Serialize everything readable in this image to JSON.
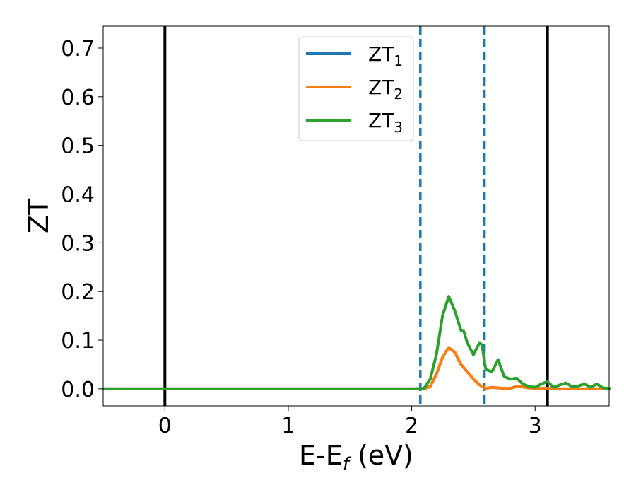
{
  "chart_data": {
    "type": "line",
    "xlabel": "E-E",
    "xlabel_sub": "f",
    "xlabel_unit": " (eV)",
    "ylabel": "ZT",
    "xlim": [
      -0.5,
      3.6
    ],
    "ylim": [
      -0.035,
      0.745
    ],
    "xticks": [
      0,
      1,
      2,
      3
    ],
    "yticks": [
      0.0,
      0.1,
      0.2,
      0.3,
      0.4,
      0.5,
      0.6,
      0.7
    ],
    "xtick_labels": [
      "0",
      "1",
      "2",
      "3"
    ],
    "ytick_labels": [
      "0.0",
      "0.1",
      "0.2",
      "0.3",
      "0.4",
      "0.5",
      "0.6",
      "0.7"
    ],
    "grid": false,
    "legend_position": "top-center",
    "vertical_lines": [
      {
        "x": 0.0,
        "style": "solid",
        "color": "#000000"
      },
      {
        "x": 3.1,
        "style": "solid",
        "color": "#000000"
      },
      {
        "x": 2.07,
        "style": "dashed",
        "color": "#1f77b4"
      },
      {
        "x": 2.59,
        "style": "dashed",
        "color": "#1f77b4"
      }
    ],
    "series": [
      {
        "name": "ZT",
        "name_sub": "1",
        "color": "#1f77b4",
        "x": [
          -0.5,
          2.0,
          2.1,
          2.15,
          2.2,
          2.25,
          2.3,
          2.35,
          2.4,
          2.45,
          2.5,
          2.55,
          2.6,
          2.65,
          2.7,
          2.75,
          2.8,
          2.85,
          2.9,
          2.95,
          3.0,
          3.1,
          3.2,
          3.3,
          3.4,
          3.5,
          3.6
        ],
        "y": [
          0,
          0,
          0,
          0.005,
          0.03,
          0.065,
          0.085,
          0.075,
          0.05,
          0.035,
          0.02,
          0.008,
          0.001,
          0.003,
          0.002,
          0.001,
          0.001,
          0.005,
          0.004,
          0.002,
          0.001,
          0.001,
          0,
          0,
          0,
          0,
          0
        ]
      },
      {
        "name": "ZT",
        "name_sub": "2",
        "color": "#ff7f0e",
        "x": [
          -0.5,
          2.0,
          2.1,
          2.15,
          2.2,
          2.25,
          2.3,
          2.35,
          2.4,
          2.45,
          2.5,
          2.55,
          2.6,
          2.65,
          2.7,
          2.75,
          2.8,
          2.85,
          2.9,
          2.95,
          3.0,
          3.1,
          3.2,
          3.3,
          3.4,
          3.5,
          3.6
        ],
        "y": [
          0,
          0,
          0,
          0.005,
          0.03,
          0.065,
          0.085,
          0.075,
          0.05,
          0.035,
          0.02,
          0.008,
          0.001,
          0.003,
          0.002,
          0.001,
          0.001,
          0.005,
          0.004,
          0.002,
          0.001,
          0.001,
          0,
          0,
          0,
          0,
          0
        ]
      },
      {
        "name": "ZT",
        "name_sub": "3",
        "color": "#2ca02c",
        "x": [
          -0.5,
          2.0,
          2.1,
          2.15,
          2.2,
          2.25,
          2.3,
          2.35,
          2.4,
          2.42,
          2.45,
          2.5,
          2.55,
          2.57,
          2.6,
          2.65,
          2.7,
          2.75,
          2.8,
          2.85,
          2.9,
          2.95,
          3.0,
          3.05,
          3.1,
          3.15,
          3.2,
          3.25,
          3.3,
          3.35,
          3.4,
          3.45,
          3.5,
          3.55,
          3.6
        ],
        "y": [
          0,
          0,
          0.001,
          0.02,
          0.07,
          0.15,
          0.19,
          0.16,
          0.12,
          0.12,
          0.095,
          0.07,
          0.095,
          0.09,
          0.04,
          0.035,
          0.06,
          0.025,
          0.02,
          0.022,
          0.01,
          0.005,
          0.003,
          0.01,
          0.015,
          0.003,
          0.008,
          0.012,
          0.004,
          0.006,
          0.01,
          0.003,
          0.01,
          0.002,
          0.001
        ]
      }
    ]
  }
}
